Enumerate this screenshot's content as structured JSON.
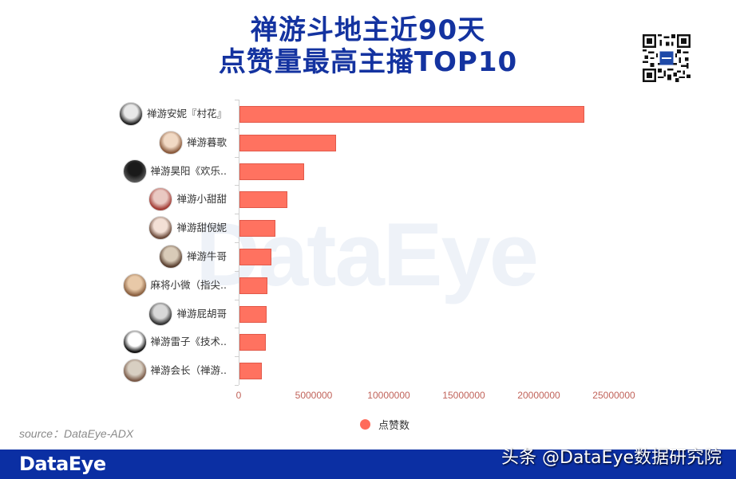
{
  "header": {
    "title_line1": "禅游斗地主近90天",
    "title_line2": "点赞量最高主播TOP10",
    "qr_icon": "qr-code-icon"
  },
  "watermark": "DataEye",
  "source": "source：DataEye-ADX",
  "footer": {
    "logo": "DataEye",
    "handle": "头条 @DataEye数据研究院",
    "color": "#0b2fa3"
  },
  "colors": {
    "bar": "#ff7260",
    "title": "#1433a0",
    "axis_label": "#c1635a"
  },
  "chart_data": {
    "type": "bar",
    "orientation": "horizontal",
    "title": "禅游斗地主近90天 点赞量最高主播TOP10",
    "xlabel": "",
    "ylabel": "",
    "xlim": [
      0,
      25000000
    ],
    "x_ticks": [
      "0",
      "5000000",
      "10000000",
      "15000000",
      "20000000",
      "25000000"
    ],
    "grid": false,
    "legend_position": "bottom",
    "categories": [
      "禅游安妮『村花』",
      "禅游暮歌",
      "禅游昊阳《欢乐..",
      "禅游小甜甜",
      "禅游甜倪妮",
      "禅游牛哥",
      "麻将小微（指尖..",
      "禅游屁胡哥",
      "禅游雷子《技术..",
      "禅游会长（禅游.."
    ],
    "series": [
      {
        "name": "点赞数",
        "color": "#ff7260",
        "values": [
          23000000,
          6450000,
          4300000,
          3200000,
          2400000,
          2150000,
          1850000,
          1800000,
          1750000,
          1500000
        ]
      }
    ]
  }
}
